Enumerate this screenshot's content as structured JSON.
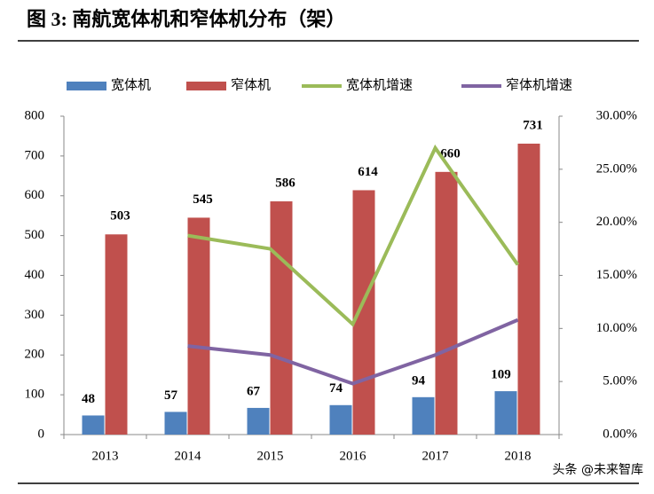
{
  "chart_data": {
    "type": "bar-line",
    "title": "图 3: 南航宽体机和窄体机分布（架）",
    "categories": [
      "2013",
      "2014",
      "2015",
      "2016",
      "2017",
      "2018"
    ],
    "series": [
      {
        "name": "宽体机",
        "color": "#4f81bd",
        "kind": "bar",
        "values": [
          48,
          57,
          67,
          74,
          94,
          109
        ]
      },
      {
        "name": "窄体机",
        "color": "#c0504d",
        "kind": "bar",
        "values": [
          503,
          545,
          586,
          614,
          660,
          731
        ]
      },
      {
        "name": "宽体机增速",
        "color": "#9bbb59",
        "kind": "line",
        "axis": "y2",
        "values": [
          null,
          18.75,
          17.5,
          10.4,
          27.0,
          16.0
        ]
      },
      {
        "name": "窄体机增速",
        "color": "#8064a2",
        "kind": "line",
        "axis": "y2",
        "values": [
          null,
          8.35,
          7.5,
          4.8,
          7.5,
          10.8
        ]
      }
    ],
    "ylim": [
      0,
      800
    ],
    "yticks": [
      0,
      100,
      200,
      300,
      400,
      500,
      600,
      700,
      800
    ],
    "y2lim": [
      0,
      30
    ],
    "y2ticks": [
      {
        "value": 0,
        "label": "0.00%"
      },
      {
        "value": 5,
        "label": "5.00%"
      },
      {
        "value": 10,
        "label": "10.00%"
      },
      {
        "value": 15,
        "label": "15.00%"
      },
      {
        "value": 20,
        "label": "20.00%"
      },
      {
        "value": 25,
        "label": "25.00%"
      },
      {
        "value": 30,
        "label": "30.00%"
      }
    ],
    "watermark": "头条 @未来智库"
  }
}
